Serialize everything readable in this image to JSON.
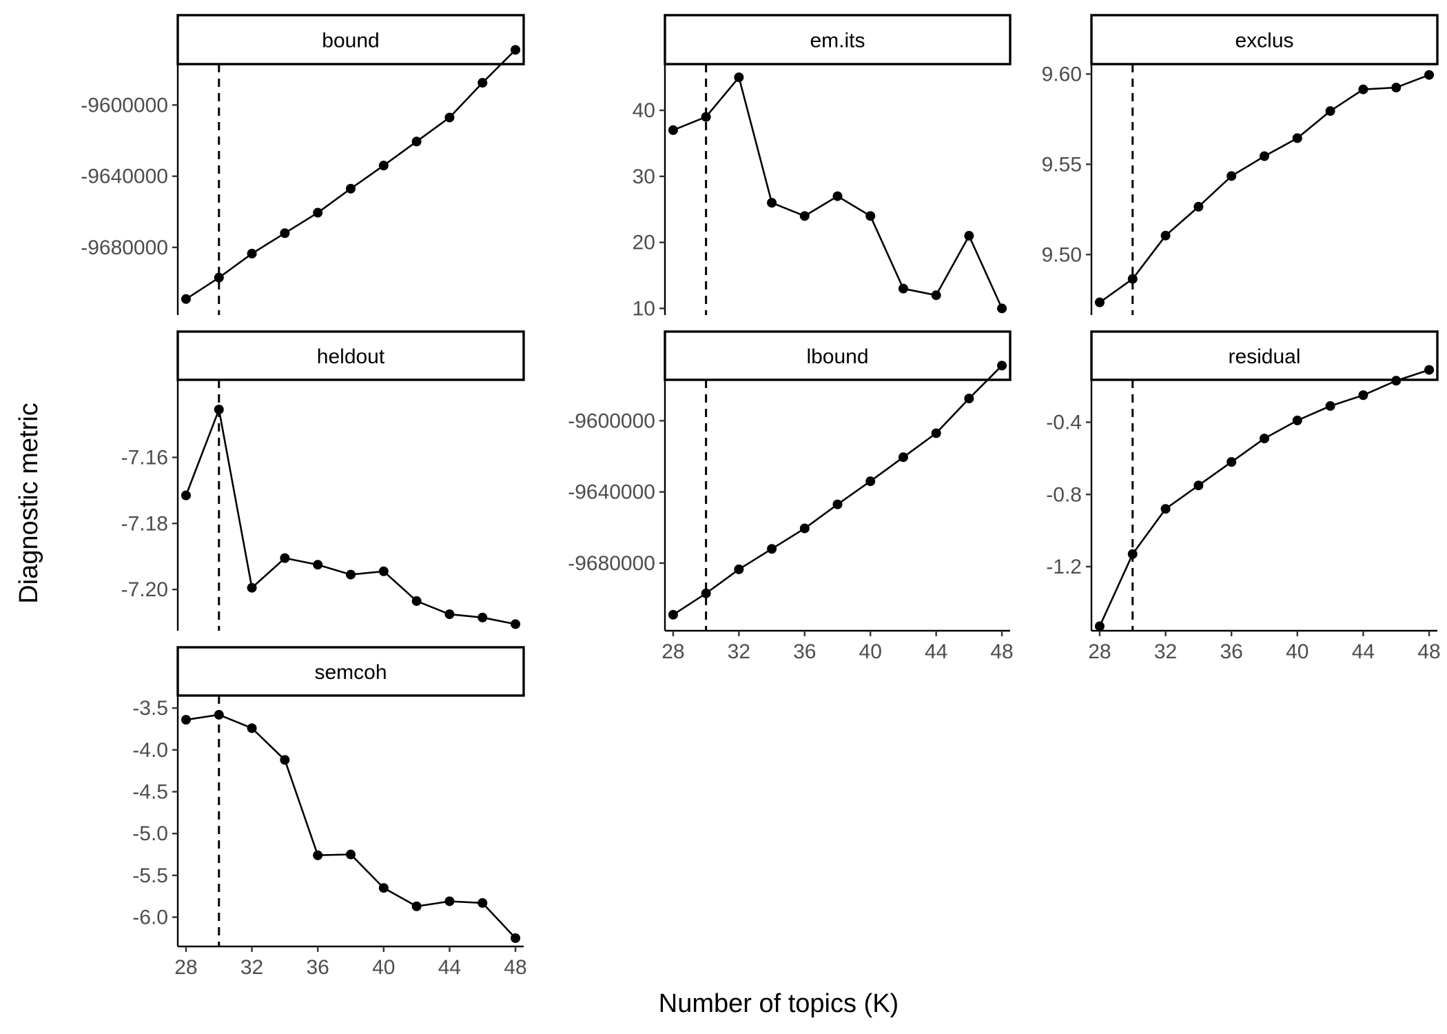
{
  "chart_data": {
    "type": "line",
    "layout": "facet-grid",
    "xlabel": "Number of topics (K)",
    "ylabel": "Diagnostic metric",
    "x": [
      28,
      30,
      32,
      34,
      36,
      38,
      40,
      42,
      44,
      46,
      48
    ],
    "x_ticks": [
      28,
      32,
      36,
      40,
      44,
      48
    ],
    "xlim": [
      27.5,
      48.5
    ],
    "reference_line_x": 30,
    "grid": false,
    "facets": [
      {
        "name": "bound",
        "ylim": [
          -9718000,
          -9577000
        ],
        "y_ticks": [
          -9680000,
          -9640000,
          -9600000
        ],
        "y_tick_labels": [
          "-9680000",
          "-9640000",
          "-9600000"
        ],
        "values": [
          -9709000,
          -9697000,
          -9683500,
          -9672000,
          -9660500,
          -9647000,
          -9634000,
          -9620500,
          -9607000,
          -9587500,
          -9569000
        ]
      },
      {
        "name": "em.its",
        "ylim": [
          9,
          47
        ],
        "y_ticks": [
          10,
          20,
          30,
          40
        ],
        "y_tick_labels": [
          "10",
          "20",
          "30",
          "40"
        ],
        "values": [
          37,
          39,
          45,
          26,
          24,
          27,
          24,
          13,
          12,
          21,
          10
        ]
      },
      {
        "name": "exclus",
        "ylim": [
          9.4665,
          9.6055
        ],
        "y_ticks": [
          9.5,
          9.55,
          9.6
        ],
        "y_tick_labels": [
          "9.50",
          "9.55",
          "9.60"
        ],
        "values": [
          9.4735,
          9.4865,
          9.5105,
          9.5265,
          9.5435,
          9.5545,
          9.5645,
          9.5795,
          9.5915,
          9.5925,
          9.5995
        ]
      },
      {
        "name": "heldout",
        "ylim": [
          -7.2125,
          -7.1365
        ],
        "y_ticks": [
          -7.2,
          -7.18,
          -7.16
        ],
        "y_tick_labels": [
          "-7.20",
          "-7.18",
          "-7.16"
        ],
        "values": [
          -7.1715,
          -7.1455,
          -7.1995,
          -7.1905,
          -7.1925,
          -7.1955,
          -7.1945,
          -7.2035,
          -7.2075,
          -7.2085,
          -7.2105
        ]
      },
      {
        "name": "lbound",
        "ylim": [
          -9718000,
          -9577000
        ],
        "y_ticks": [
          -9680000,
          -9640000,
          -9600000
        ],
        "y_tick_labels": [
          "-9680000",
          "-9640000",
          "-9600000"
        ],
        "values": [
          -9709000,
          -9697000,
          -9683500,
          -9672000,
          -9660500,
          -9647000,
          -9634000,
          -9620500,
          -9607000,
          -9587500,
          -9569000
        ]
      },
      {
        "name": "residual",
        "ylim": [
          -1.555,
          -0.165
        ],
        "y_ticks": [
          -1.2,
          -0.8,
          -0.4
        ],
        "y_tick_labels": [
          "-1.2",
          "-0.8",
          "-0.4"
        ],
        "values": [
          -1.53,
          -1.13,
          -0.88,
          -0.75,
          -0.62,
          -0.49,
          -0.39,
          -0.31,
          -0.25,
          -0.17,
          -0.11
        ]
      },
      {
        "name": "semcoh",
        "ylim": [
          -6.35,
          -3.35
        ],
        "y_ticks": [
          -6.0,
          -5.5,
          -5.0,
          -4.5,
          -4.0,
          -3.5
        ],
        "y_tick_labels": [
          "-6.0",
          "-5.5",
          "-5.0",
          "-4.5",
          "-4.0",
          "-3.5"
        ],
        "values": [
          -3.64,
          -3.58,
          -3.74,
          -4.12,
          -5.26,
          -5.25,
          -5.65,
          -5.87,
          -5.81,
          -5.83,
          -6.25
        ]
      }
    ]
  }
}
